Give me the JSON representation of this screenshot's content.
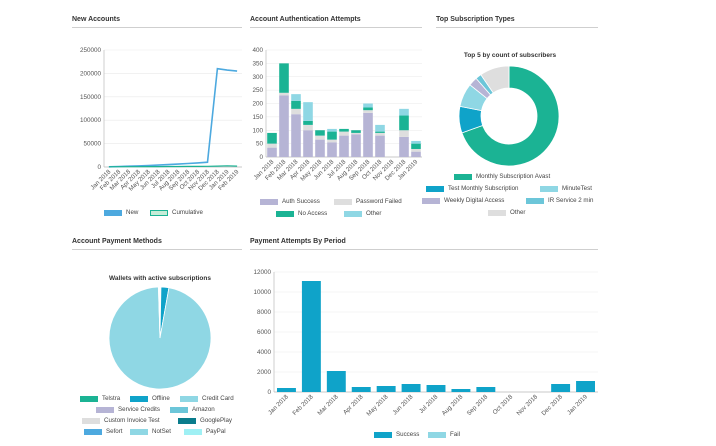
{
  "sections": {
    "new_accounts": "New Accounts",
    "auth_attempts": "Account Authentication Attempts",
    "top_subscriptions": "Top Subscription Types",
    "payment_methods": "Account Payment Methods",
    "payment_attempts": "Payment Attempts By Period"
  },
  "colors": {
    "teal": "#1bb394",
    "blue": "#0fa3c9",
    "light_blue": "#8fd7e4",
    "lavender": "#b6b4d5",
    "light_gray": "#dedede",
    "line_blue": "#4da9df"
  },
  "chart_data": [
    {
      "id": "new_accounts",
      "type": "line",
      "categories": [
        "Jan 2018",
        "Feb 2018",
        "Mar 2018",
        "Apr 2018",
        "May 2018",
        "Jun 2018",
        "Jul 2018",
        "Aug 2018",
        "Sep 2018",
        "Oct 2018",
        "Nov 2018",
        "Dec 2018",
        "Jan 2019",
        "Feb 2019"
      ],
      "series": [
        {
          "name": "New",
          "values": [
            500,
            600,
            600,
            700,
            800,
            900,
            1000,
            1100,
            1200,
            1300,
            1500,
            2000,
            2500,
            2000
          ]
        },
        {
          "name": "Cumulative",
          "values": [
            500,
            1100,
            1700,
            2400,
            3200,
            4100,
            5100,
            6200,
            7400,
            8700,
            10200,
            210000,
            207000,
            205000
          ]
        }
      ],
      "y_ticks": [
        0,
        50000,
        100000,
        150000,
        200000,
        250000
      ],
      "ylim": [
        0,
        250000
      ],
      "legend": "bottom"
    },
    {
      "id": "auth_attempts",
      "type": "bar",
      "stacked": true,
      "categories": [
        "Jan 2018",
        "Feb 2018",
        "Mar 2018",
        "Apr 2018",
        "May 2018",
        "Jun 2018",
        "Jul 2018",
        "Aug 2018",
        "Sep 2018",
        "Oct 2018",
        "Nov 2018",
        "Dec 2018",
        "Jan 2019"
      ],
      "series": [
        {
          "name": "Auth Success",
          "values": [
            35,
            230,
            160,
            100,
            65,
            55,
            80,
            85,
            165,
            80,
            0,
            75,
            20
          ]
        },
        {
          "name": "Password Failed",
          "values": [
            15,
            10,
            20,
            20,
            15,
            10,
            15,
            5,
            10,
            10,
            0,
            25,
            10
          ]
        },
        {
          "name": "No Access",
          "values": [
            40,
            110,
            30,
            15,
            20,
            30,
            10,
            10,
            10,
            5,
            0,
            55,
            20
          ]
        },
        {
          "name": "Other",
          "values": [
            0,
            0,
            25,
            70,
            0,
            10,
            0,
            0,
            15,
            25,
            0,
            25,
            10
          ]
        }
      ],
      "y_ticks": [
        0,
        50,
        100,
        150,
        200,
        250,
        300,
        350,
        400
      ],
      "ylim": [
        0,
        400
      ],
      "legend": "bottom"
    },
    {
      "id": "top_subscriptions",
      "type": "pie",
      "donut": true,
      "title": "Top 5 by count of subscribers",
      "labels": [
        "Monthly Subscription Avast",
        "Test Monthly Subscription",
        "MinuteTest",
        "Weekly Digital Access",
        "IR Service 2 min",
        "Other"
      ],
      "values": [
        73,
        9,
        8,
        3,
        2,
        10
      ],
      "legend": "bottom"
    },
    {
      "id": "payment_methods",
      "type": "pie",
      "title": "Wallets with active subscriptions",
      "labels": [
        "Telstra",
        "Offline",
        "Credit Card",
        "Service Credits",
        "Amazon",
        "Custom Invoice Test",
        "GooglePlay",
        "Sefort",
        "NotSet",
        "PayPal"
      ],
      "values": [
        0.3,
        2.5,
        96.7,
        0.1,
        0.1,
        0.1,
        0.1,
        0.05,
        0.05,
        0.0
      ],
      "legend": "bottom"
    },
    {
      "id": "payment_attempts",
      "type": "bar",
      "stacked": true,
      "categories": [
        "Jan 2018",
        "Feb 2018",
        "Mar 2018",
        "Apr 2018",
        "May 2018",
        "Jun 2018",
        "Jul 2018",
        "Aug 2018",
        "Sep 2018",
        "Oct 2018",
        "Nov 2018",
        "Dec 2018",
        "Jan 2019"
      ],
      "series": [
        {
          "name": "Success",
          "values": [
            400,
            11100,
            2100,
            500,
            600,
            800,
            700,
            300,
            500,
            0,
            0,
            800,
            1100
          ]
        },
        {
          "name": "Fail",
          "values": [
            0,
            0,
            0,
            0,
            0,
            0,
            0,
            0,
            0,
            0,
            0,
            0,
            0
          ]
        }
      ],
      "y_ticks": [
        0,
        2000,
        4000,
        6000,
        8000,
        10000,
        12000
      ],
      "ylim": [
        0,
        12000
      ],
      "legend": "bottom"
    }
  ]
}
